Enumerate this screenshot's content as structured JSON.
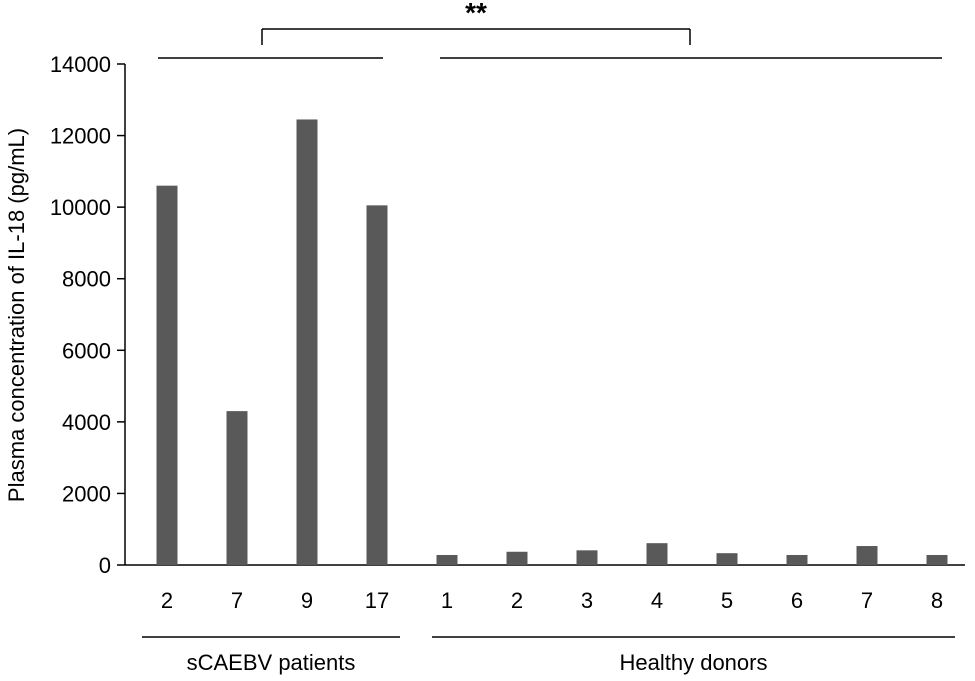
{
  "chart_data": {
    "type": "bar",
    "ylabel": "Plasma concentration of IL-18 (pg/mL)",
    "ylim": [
      0,
      14000
    ],
    "yticks": [
      0,
      2000,
      4000,
      6000,
      8000,
      10000,
      12000,
      14000
    ],
    "ytick_labels": [
      "0",
      "2000",
      "4000",
      "6000",
      "8000",
      "10000",
      "12000",
      "14000"
    ],
    "categories": [
      "2",
      "7",
      "9",
      "17",
      "1",
      "2",
      "3",
      "4",
      "5",
      "6",
      "7",
      "8"
    ],
    "values": [
      10600,
      4300,
      12450,
      10050,
      280,
      370,
      410,
      610,
      330,
      280,
      530,
      280
    ],
    "bar_color": "#595959",
    "groups": [
      {
        "label": "sCAEBV patients",
        "start": 0,
        "end": 3
      },
      {
        "label": "Healthy donors",
        "start": 4,
        "end": 11
      }
    ],
    "significance": {
      "label": "**"
    },
    "grid": false
  }
}
